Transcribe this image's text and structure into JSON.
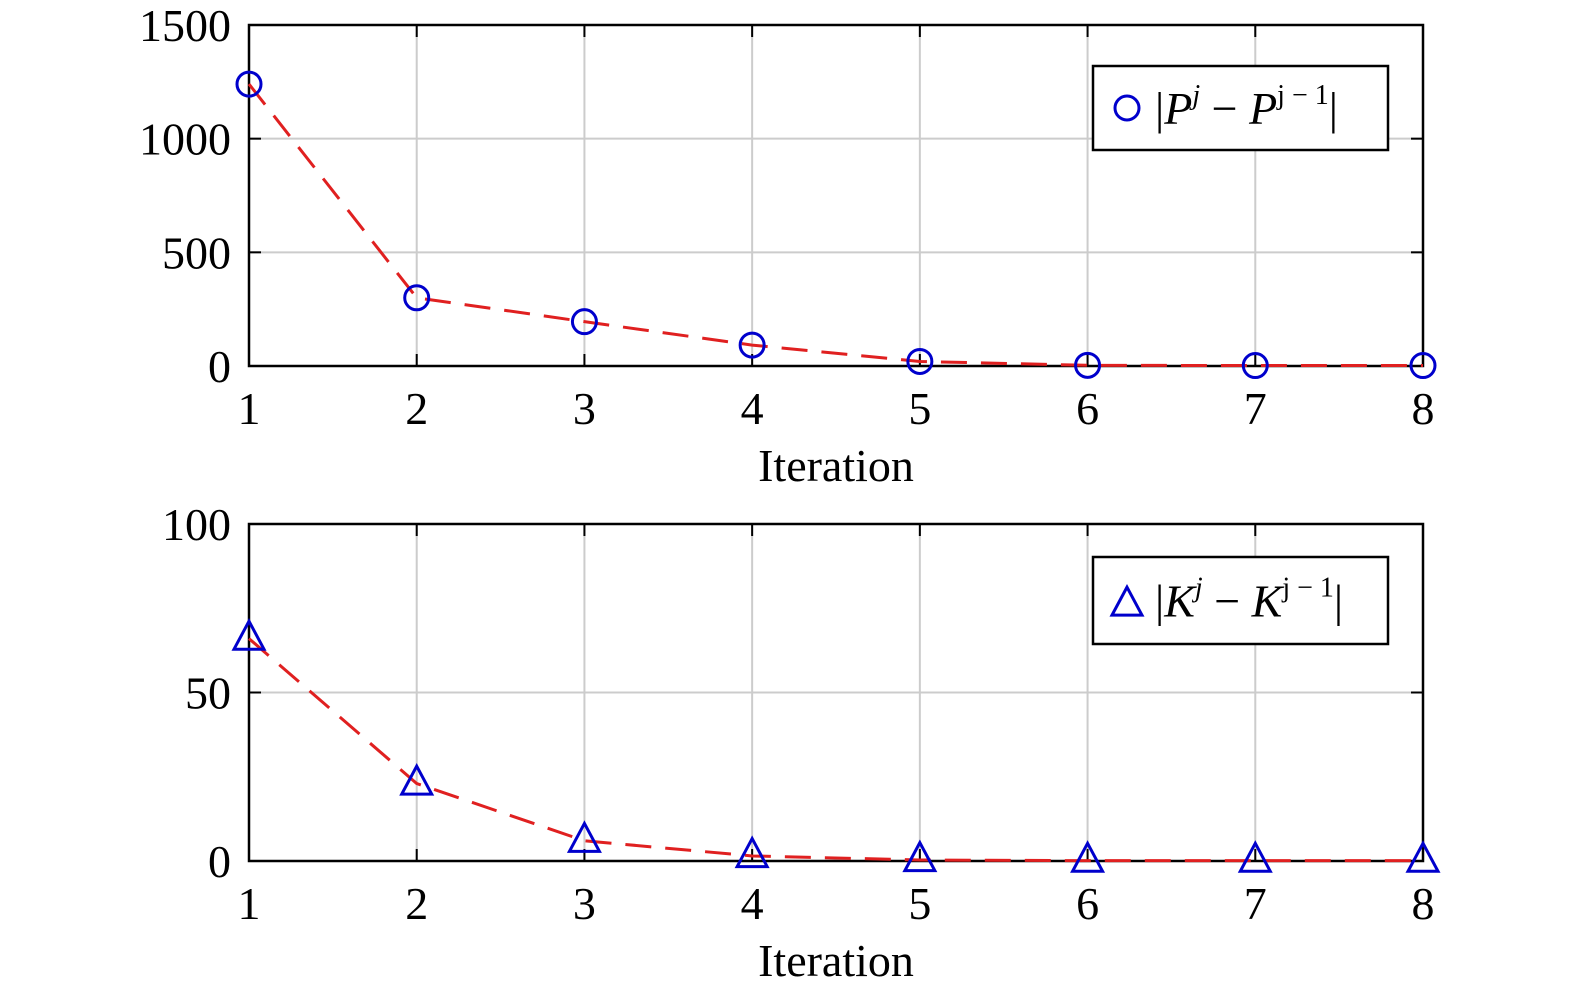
{
  "chart_data": [
    {
      "type": "line",
      "x": [
        1,
        2,
        3,
        4,
        5,
        6,
        7,
        8
      ],
      "xticks": [
        "1",
        "2",
        "3",
        "4",
        "5",
        "6",
        "7",
        "8"
      ],
      "xlim": [
        1,
        8
      ],
      "yticks": [
        "0",
        "500",
        "1000",
        "1500"
      ],
      "ylim": [
        0,
        1500
      ],
      "xlabel": "Iteration",
      "ylabel": "",
      "grid": true,
      "legend_position": "top-right",
      "series": [
        {
          "name": "|P^j − P^(j−1)|",
          "marker": "circle",
          "values": [
            1240,
            300,
            195,
            92,
            20,
            3,
            2,
            2
          ]
        }
      ],
      "legend": {
        "bar": "|",
        "var": "P",
        "sup_j": "j",
        "minus": "−",
        "sup_jm1": "j − 1"
      }
    },
    {
      "type": "line",
      "x": [
        1,
        2,
        3,
        4,
        5,
        6,
        7,
        8
      ],
      "xticks": [
        "1",
        "2",
        "3",
        "4",
        "5",
        "6",
        "7",
        "8"
      ],
      "xlim": [
        1,
        8
      ],
      "yticks": [
        "0",
        "50",
        "100"
      ],
      "ylim": [
        0,
        100
      ],
      "xlabel": "Iteration",
      "ylabel": "",
      "grid": true,
      "legend_position": "top-right",
      "series": [
        {
          "name": "|K^j − K^(j−1)|",
          "marker": "triangle",
          "values": [
            66,
            23,
            6,
            1.5,
            0.3,
            0.1,
            0.1,
            0.1
          ]
        }
      ],
      "legend": {
        "bar": "|",
        "var": "K",
        "sup_j": "j",
        "minus": "−",
        "sup_jm1": "j − 1"
      }
    }
  ],
  "colors": {
    "marker": "#0000cc",
    "line": "#e02020",
    "grid": "#cccccc",
    "axis": "#000000"
  }
}
